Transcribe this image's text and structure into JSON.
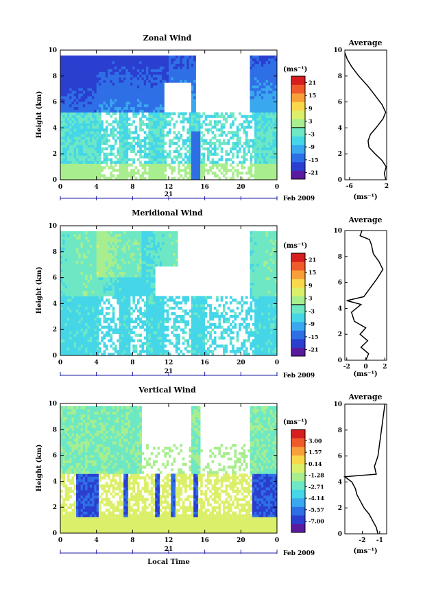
{
  "figure": {
    "xlabel": "Local Time",
    "date_label": "Feb 2009",
    "day_label": "21",
    "ylabel": "Height (km)",
    "avg_title": "Average",
    "unit_label": "(ms⁻¹)"
  },
  "colormap": [
    "#5a1a9e",
    "#2a3fcf",
    "#2f6fe6",
    "#3aa8ee",
    "#45d6e8",
    "#6ee8c4",
    "#a8ee8e",
    "#dcef6a",
    "#f8d84a",
    "#f7a03a",
    "#ef5a2a",
    "#d61e1e"
  ],
  "chart_data": [
    {
      "type": "heatmap",
      "title": "Zonal Wind",
      "x_ticks": [
        "0",
        "4",
        "8",
        "12",
        "16",
        "20",
        "0"
      ],
      "y_ticks": [
        "0",
        "2",
        "4",
        "6",
        "8",
        "10"
      ],
      "xlim": [
        0,
        24
      ],
      "ylim": [
        0,
        10
      ],
      "colorbar_ticks": [
        "21",
        "15",
        "9",
        "3",
        "-3",
        "-9",
        "-15",
        "-21"
      ],
      "colorbar_range": [
        -24,
        24
      ],
      "avg_profile": {
        "x_ticks": [
          "-6",
          "2"
        ],
        "xlim": [
          -7,
          2
        ],
        "x": [
          1.8,
          1.5,
          1.9,
          1.0,
          -0.5,
          -1.8,
          -2.0,
          -1.5,
          -0.3,
          1.2,
          1.8,
          1.0,
          -0.5,
          -2.0,
          -4.0,
          -5.5,
          -6.5,
          -7.0
        ],
        "y": [
          0.0,
          0.5,
          1.0,
          1.5,
          2.0,
          2.5,
          3.0,
          3.5,
          4.0,
          4.7,
          5.2,
          5.8,
          6.5,
          7.2,
          8.0,
          8.7,
          9.3,
          9.8
        ]
      }
    },
    {
      "type": "heatmap",
      "title": "Meridional Wind",
      "x_ticks": [
        "0",
        "4",
        "8",
        "12",
        "16",
        "20",
        "0"
      ],
      "y_ticks": [
        "0",
        "2",
        "4",
        "6",
        "8",
        "10"
      ],
      "xlim": [
        0,
        24
      ],
      "ylim": [
        0,
        10
      ],
      "colorbar_ticks": [
        "21",
        "15",
        "9",
        "3",
        "-3",
        "-9",
        "-15",
        "-21"
      ],
      "colorbar_range": [
        -24,
        24
      ],
      "avg_profile": {
        "x_ticks": [
          "-2",
          "0",
          "2"
        ],
        "xlim": [
          -2.2,
          2.2
        ],
        "x": [
          0.0,
          0.3,
          -0.5,
          0.2,
          -0.6,
          0.0,
          -1.2,
          -1.5,
          -0.5,
          -2.0,
          -0.2,
          0.4,
          1.2,
          1.8,
          1.4,
          0.8,
          0.6,
          0.4,
          -0.6,
          -0.4
        ],
        "y": [
          0.0,
          0.5,
          1.0,
          1.5,
          2.0,
          2.5,
          3.0,
          3.7,
          4.3,
          4.6,
          4.9,
          5.5,
          6.3,
          7.0,
          7.6,
          8.2,
          8.9,
          9.3,
          9.6,
          10.0
        ]
      }
    },
    {
      "type": "heatmap",
      "title": "Vertical Wind",
      "x_ticks": [
        "0",
        "4",
        "8",
        "12",
        "16",
        "20",
        "0"
      ],
      "y_ticks": [
        "0",
        "2",
        "4",
        "6",
        "8",
        "10"
      ],
      "xlim": [
        0,
        24
      ],
      "ylim": [
        0,
        10
      ],
      "colorbar_ticks": [
        "3.00",
        "1.57",
        "0.14",
        "-1.28",
        "-2.71",
        "-4.14",
        "-5.57",
        "-7.00"
      ],
      "colorbar_range": [
        -8.4,
        4.4
      ],
      "avg_profile": {
        "x_ticks": [
          "-2",
          "-1"
        ],
        "xlim": [
          -3.0,
          -0.6
        ],
        "x": [
          -1.1,
          -1.2,
          -1.4,
          -1.6,
          -1.9,
          -2.1,
          -2.3,
          -2.4,
          -2.6,
          -3.0,
          -1.2,
          -1.3,
          -1.1,
          -1.0,
          -0.9,
          -0.8,
          -0.7
        ],
        "y": [
          0.0,
          0.5,
          1.0,
          1.5,
          2.0,
          2.5,
          3.0,
          3.5,
          4.0,
          4.4,
          4.6,
          5.2,
          6.0,
          7.0,
          8.0,
          9.0,
          10.0
        ]
      }
    }
  ]
}
